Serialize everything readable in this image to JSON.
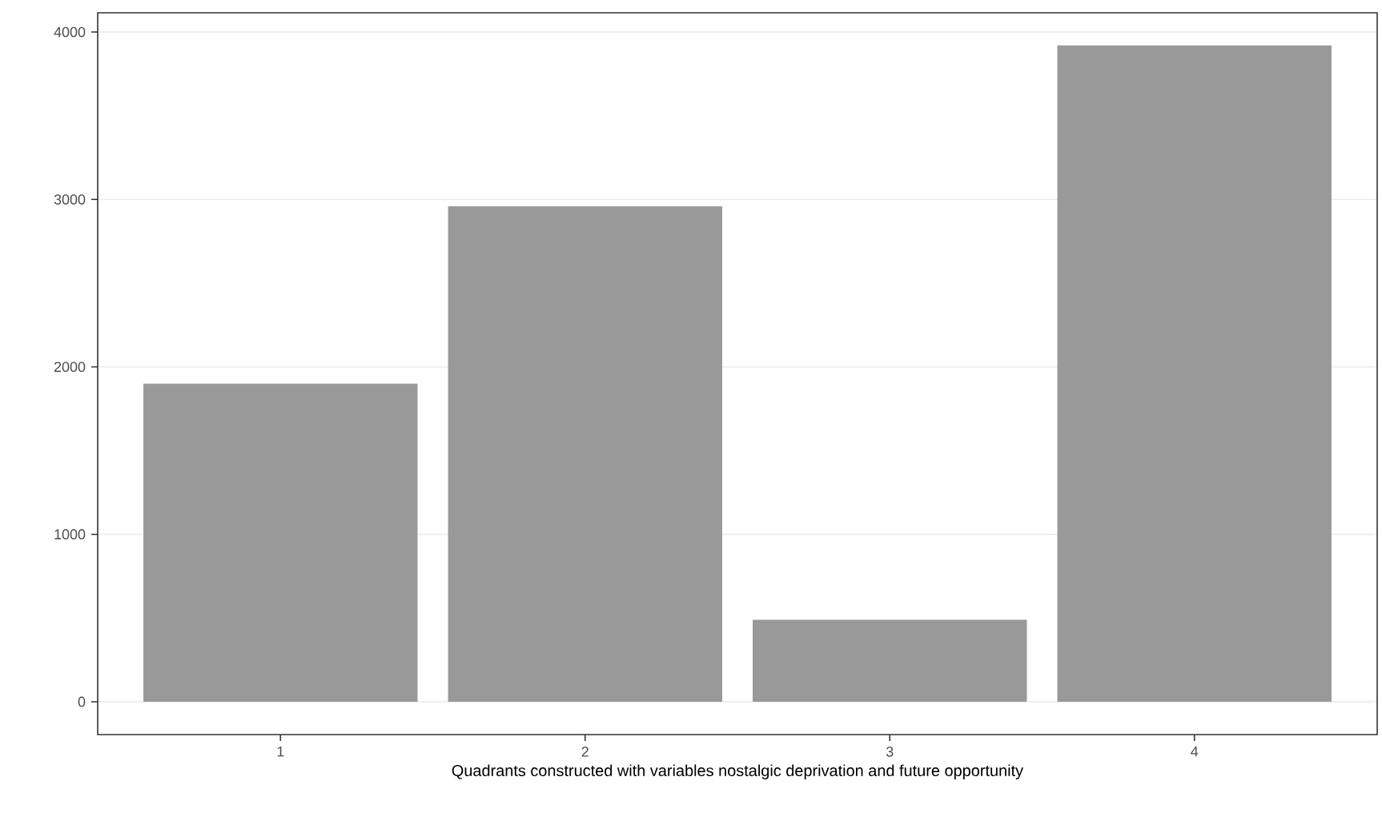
{
  "chart_data": {
    "type": "bar",
    "xlabel": "Quadrants constructed with variables nostalgic deprivation and future opportunity",
    "categories": [
      "1",
      "2",
      "3",
      "4"
    ],
    "values": [
      1900,
      2960,
      490,
      3920
    ],
    "color": "#999999",
    "ylim": [
      -196,
      4115
    ],
    "yticks": [
      0,
      1000,
      2000,
      3000,
      4000
    ],
    "grid": "y"
  }
}
